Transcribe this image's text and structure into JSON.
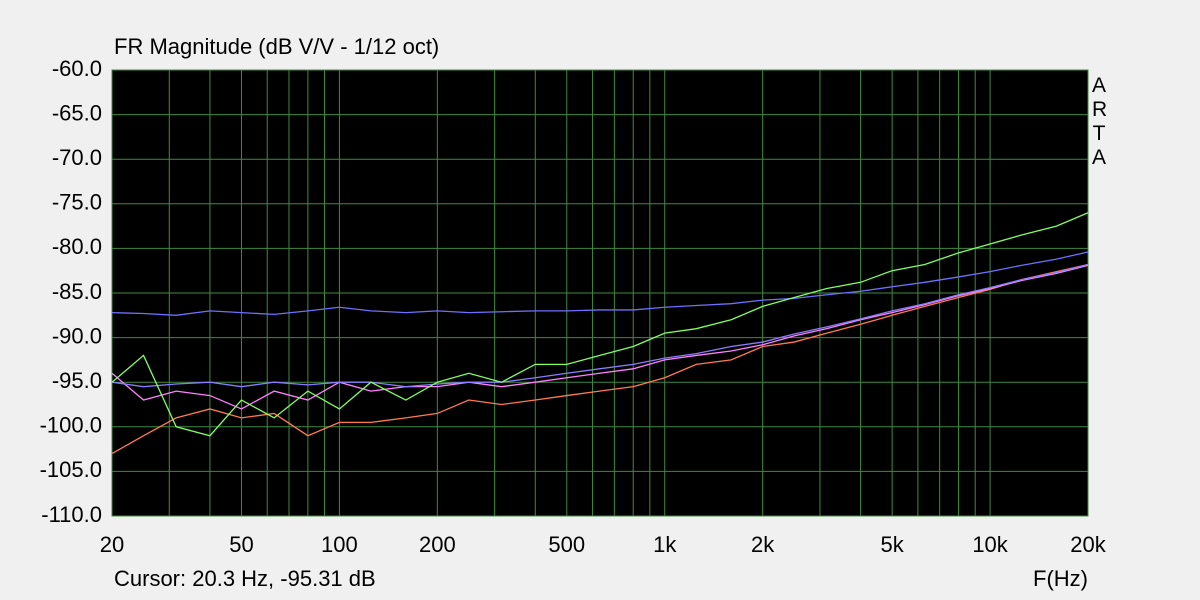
{
  "chart_data": {
    "type": "line",
    "title": "FR Magnitude (dB V/V - 1/12 oct)",
    "side_label": "ARTA",
    "cursor_readout": "Cursor: 20.3 Hz, -95.31 dB",
    "x_label": "F(Hz)",
    "xscale": "log",
    "grid": true,
    "grid_color": "#3f8a3f",
    "background": "#000000",
    "xlim": [
      20,
      20000
    ],
    "ylim": [
      -110,
      -60
    ],
    "xticks": [
      20,
      50,
      100,
      200,
      500,
      {
        "value": 1000,
        "label": "1k"
      },
      {
        "value": 2000,
        "label": "2k"
      },
      {
        "value": 5000,
        "label": "5k"
      },
      {
        "value": 10000,
        "label": "10k"
      },
      {
        "value": 20000,
        "label": "20k"
      }
    ],
    "x_minor_grid": [
      30,
      40,
      60,
      70,
      80,
      90,
      300,
      400,
      600,
      700,
      800,
      900,
      3000,
      4000,
      6000,
      7000,
      8000,
      9000
    ],
    "yticks": [
      {
        "value": -60,
        "label": "-60.0"
      },
      {
        "value": -65,
        "label": "-65.0"
      },
      {
        "value": -70,
        "label": "-70.0"
      },
      {
        "value": -75,
        "label": "-75.0"
      },
      {
        "value": -80,
        "label": "-80.0"
      },
      {
        "value": -85,
        "label": "-85.0"
      },
      {
        "value": -90,
        "label": "-90.0"
      },
      {
        "value": -95,
        "label": "-95.0"
      },
      {
        "value": -100,
        "label": "-100.0"
      },
      {
        "value": -105,
        "label": "-105.0"
      },
      {
        "value": -110,
        "label": "-110.0"
      }
    ],
    "x": [
      20,
      25,
      31.5,
      40,
      50,
      63,
      80,
      100,
      125,
      160,
      200,
      250,
      315,
      400,
      500,
      630,
      800,
      1000,
      1250,
      1600,
      2000,
      2500,
      3150,
      4000,
      5000,
      6300,
      8000,
      10000,
      12500,
      16000,
      20000
    ],
    "series": [
      {
        "color": "#ff7a50",
        "values": [
          -103,
          -101,
          -99,
          -98,
          -99,
          -98.5,
          -101,
          -99.5,
          -99.5,
          -99,
          -98.5,
          -97,
          -97.5,
          -97,
          -96.5,
          -96,
          -95.5,
          -94.5,
          -93,
          -92.5,
          -91,
          -90.5,
          -89.5,
          -88.5,
          -87.5,
          -86.5,
          -85.5,
          -84.6,
          -83.5,
          -82.6,
          -81.8
        ]
      },
      {
        "color": "#ff80ff",
        "values": [
          -94,
          -97,
          -96,
          -96.5,
          -98,
          -96,
          -97,
          -95,
          -96,
          -95.5,
          -95.5,
          -95,
          -95.5,
          -95,
          -94.5,
          -94,
          -93.5,
          -92.5,
          -92,
          -91.5,
          -90.8,
          -89.8,
          -89,
          -88,
          -87.2,
          -86.3,
          -85.3,
          -84.5,
          -83.6,
          -82.8,
          -81.9
        ]
      },
      {
        "color": "#8a7cff",
        "values": [
          -95,
          -95.5,
          -95.2,
          -95,
          -95.5,
          -95,
          -95.3,
          -95,
          -95,
          -95.5,
          -95.2,
          -95,
          -95,
          -94.5,
          -94,
          -93.5,
          -93,
          -92.3,
          -91.8,
          -91,
          -90.5,
          -89.6,
          -88.8,
          -87.9,
          -87,
          -86.2,
          -85.2,
          -84.4,
          -83.5,
          -82.7,
          -81.8
        ]
      },
      {
        "color": "#6f6fff",
        "values": [
          -87.2,
          -87.3,
          -87.5,
          -87,
          -87.2,
          -87.4,
          -87,
          -86.6,
          -87,
          -87.2,
          -87,
          -87.2,
          -87.1,
          -87,
          -87,
          -86.9,
          -86.9,
          -86.6,
          -86.4,
          -86.2,
          -85.8,
          -85.6,
          -85.2,
          -84.8,
          -84.3,
          -83.8,
          -83.2,
          -82.6,
          -81.9,
          -81.2,
          -80.4
        ]
      },
      {
        "color": "#80ff60",
        "values": [
          -95,
          -92,
          -100,
          -101,
          -97,
          -99,
          -96,
          -98,
          -95,
          -97,
          -95,
          -94,
          -95,
          -93,
          -93,
          -92,
          -91,
          -89.5,
          -89,
          -88,
          -86.5,
          -85.5,
          -84.5,
          -83.8,
          -82.5,
          -81.8,
          -80.5,
          -79.5,
          -78.5,
          -77.5,
          -76
        ]
      }
    ]
  }
}
